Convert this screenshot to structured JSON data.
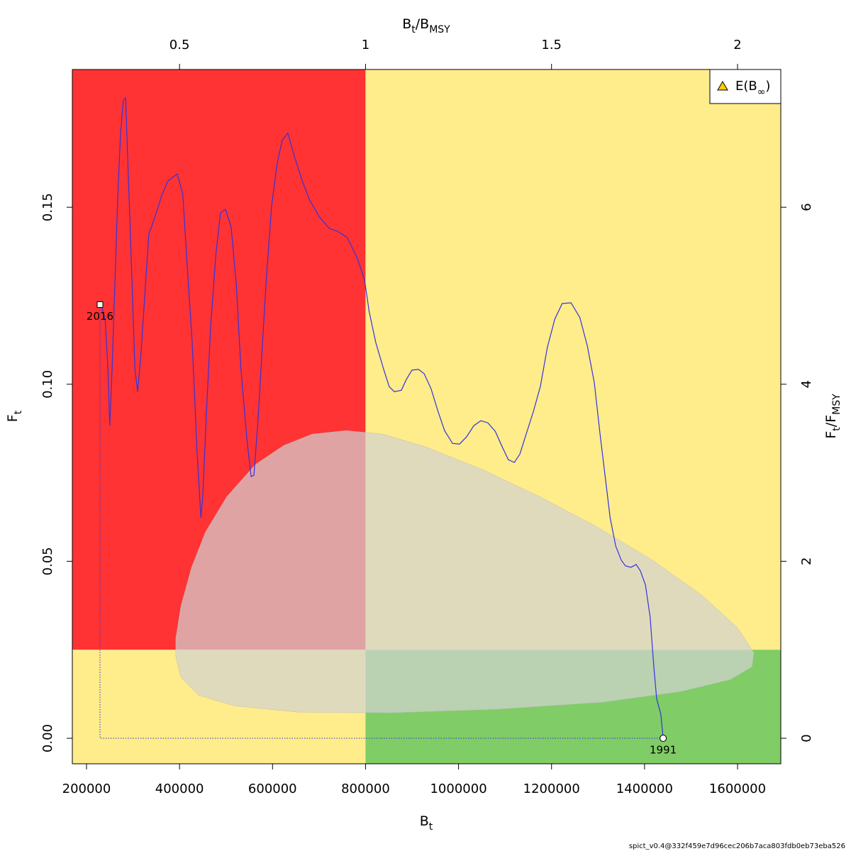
{
  "chart_data": {
    "type": "line",
    "xlabel": [
      "B",
      "t"
    ],
    "ylabel": [
      "F",
      "t"
    ],
    "x2label": [
      "B",
      "t",
      "/B",
      "MSY"
    ],
    "y2label": [
      "F",
      "t",
      "/F",
      "MSY"
    ],
    "xlim": [
      169500,
      1693000
    ],
    "xticks": [
      200000,
      400000,
      600000,
      800000,
      1000000,
      1200000,
      1400000,
      1600000
    ],
    "ylim": [
      -0.0072,
      0.1889
    ],
    "yticks": [
      {
        "value": 0,
        "label": "0.00"
      },
      {
        "value": 0.05,
        "label": "0.05"
      },
      {
        "value": 0.1,
        "label": "0.10"
      },
      {
        "value": 0.15,
        "label": "0.15"
      }
    ],
    "x2lim": [
      0.2119,
      2.1163
    ],
    "x2ticks": [
      0.5,
      1,
      1.5,
      2
    ],
    "y2lim": [
      -0.288,
      7.556
    ],
    "y2ticks": [
      0,
      2,
      4,
      6
    ],
    "reference_points": {
      "bmsy": 800000,
      "fmsy": 0.025
    },
    "zone_colors": {
      "red": "#ff3333",
      "yellow": "#ffec8b",
      "green": "#80cc66"
    },
    "confidence_region": {
      "color": "#d3d3d3",
      "opacity": 0.7,
      "x": [
        392000,
        403000,
        426000,
        456000,
        502000,
        563000,
        624000,
        685000,
        758000,
        837000,
        929000,
        1051000,
        1173000,
        1295000,
        1417000,
        1524000,
        1600000,
        1635000,
        1631000,
        1585000,
        1478000,
        1310000,
        1082000,
        853000,
        654000,
        517000,
        441000,
        403000,
        392000
      ],
      "y": [
        0.0282,
        0.0373,
        0.0483,
        0.0583,
        0.0683,
        0.0773,
        0.0827,
        0.0859,
        0.0869,
        0.0859,
        0.0823,
        0.0759,
        0.0683,
        0.0599,
        0.0503,
        0.0403,
        0.0312,
        0.0242,
        0.0202,
        0.0166,
        0.0132,
        0.0102,
        0.0082,
        0.0072,
        0.0074,
        0.0092,
        0.0122,
        0.0172,
        0.0232
      ]
    },
    "series": [
      {
        "color": "#3333dd",
        "x": [
          1440000,
          1435000,
          1426000,
          1420000,
          1412000,
          1402000,
          1391000,
          1382000,
          1371000,
          1359000,
          1350000,
          1338000,
          1326000,
          1315000,
          1304000,
          1292000,
          1277000,
          1261000,
          1242000,
          1223000,
          1207000,
          1191000,
          1176000,
          1161000,
          1144000,
          1132000,
          1120000,
          1107000,
          1094000,
          1079000,
          1063000,
          1048000,
          1033000,
          1017000,
          1002000,
          987000,
          970000,
          956000,
          941000,
          926000,
          914000,
          900000,
          888000,
          877000,
          862000,
          851000,
          839000,
          822000,
          808000,
          798000,
          783000,
          761000,
          740000,
          722000,
          700000,
          680000,
          664000,
          647000,
          633000,
          621000,
          610000,
          598000,
          587000,
          577000,
          569000,
          560000,
          554000,
          545000,
          532000,
          522000,
          511000,
          499000,
          488000,
          478000,
          467000,
          458000,
          450000,
          446000,
          438000,
          427000,
          417000,
          407000,
          395000,
          375000,
          362000,
          345000,
          334000,
          325000,
          317000,
          310000,
          304000,
          298000,
          290000,
          284000,
          279000,
          273000,
          267000,
          261000,
          255000,
          250000,
          246000,
          240000,
          232000,
          229000
        ],
        "values": [
          0,
          0.0068,
          0.0112,
          0.0202,
          0.0343,
          0.0433,
          0.0473,
          0.0491,
          0.0483,
          0.0487,
          0.0503,
          0.0543,
          0.0623,
          0.0743,
          0.0863,
          0.1004,
          0.1108,
          0.1188,
          0.123,
          0.1228,
          0.1184,
          0.1104,
          0.0994,
          0.0923,
          0.0853,
          0.0803,
          0.0779,
          0.0787,
          0.0823,
          0.0867,
          0.0891,
          0.0897,
          0.0883,
          0.0851,
          0.0831,
          0.0833,
          0.0869,
          0.0923,
          0.0987,
          0.103,
          0.1042,
          0.104,
          0.1014,
          0.0983,
          0.0979,
          0.0993,
          0.1042,
          0.1118,
          0.1204,
          0.1294,
          0.1354,
          0.1414,
          0.1432,
          0.144,
          0.1474,
          0.152,
          0.1574,
          0.1644,
          0.1709,
          0.169,
          0.1624,
          0.1504,
          0.1304,
          0.1084,
          0.0903,
          0.0743,
          0.0739,
          0.0843,
          0.1044,
          0.1284,
          0.1444,
          0.1494,
          0.1484,
          0.1364,
          0.1164,
          0.0923,
          0.0683,
          0.0623,
          0.0803,
          0.1124,
          0.1324,
          0.1538,
          0.1594,
          0.1574,
          0.1534,
          0.1464,
          0.1424,
          0.1244,
          0.1084,
          0.0979,
          0.1044,
          0.1284,
          0.1584,
          0.1809,
          0.1801,
          0.1704,
          0.1524,
          0.1284,
          0.1044,
          0.0883,
          0.1044,
          0.1184,
          0.122,
          0.1225
        ]
      }
    ],
    "projection": {
      "color": "#3333dd",
      "x": [
        229000,
        229000,
        1440000
      ],
      "values": [
        0.1225,
        0,
        0
      ]
    },
    "point_labels": [
      {
        "label": "2016",
        "x": 229000,
        "y": 0.1225,
        "marker": "square"
      },
      {
        "label": "1991",
        "x": 1440000,
        "y": 0,
        "marker": "circle"
      }
    ],
    "legend": {
      "corner": "top-right",
      "entries": [
        {
          "label": [
            "E(B",
            "∞",
            ")"
          ],
          "color": "#ffcc00",
          "marker": "triangle"
        }
      ]
    },
    "footer": "spict_v0.4@332f459e7d96cec206b7aca803fdb0eb73eba526"
  }
}
